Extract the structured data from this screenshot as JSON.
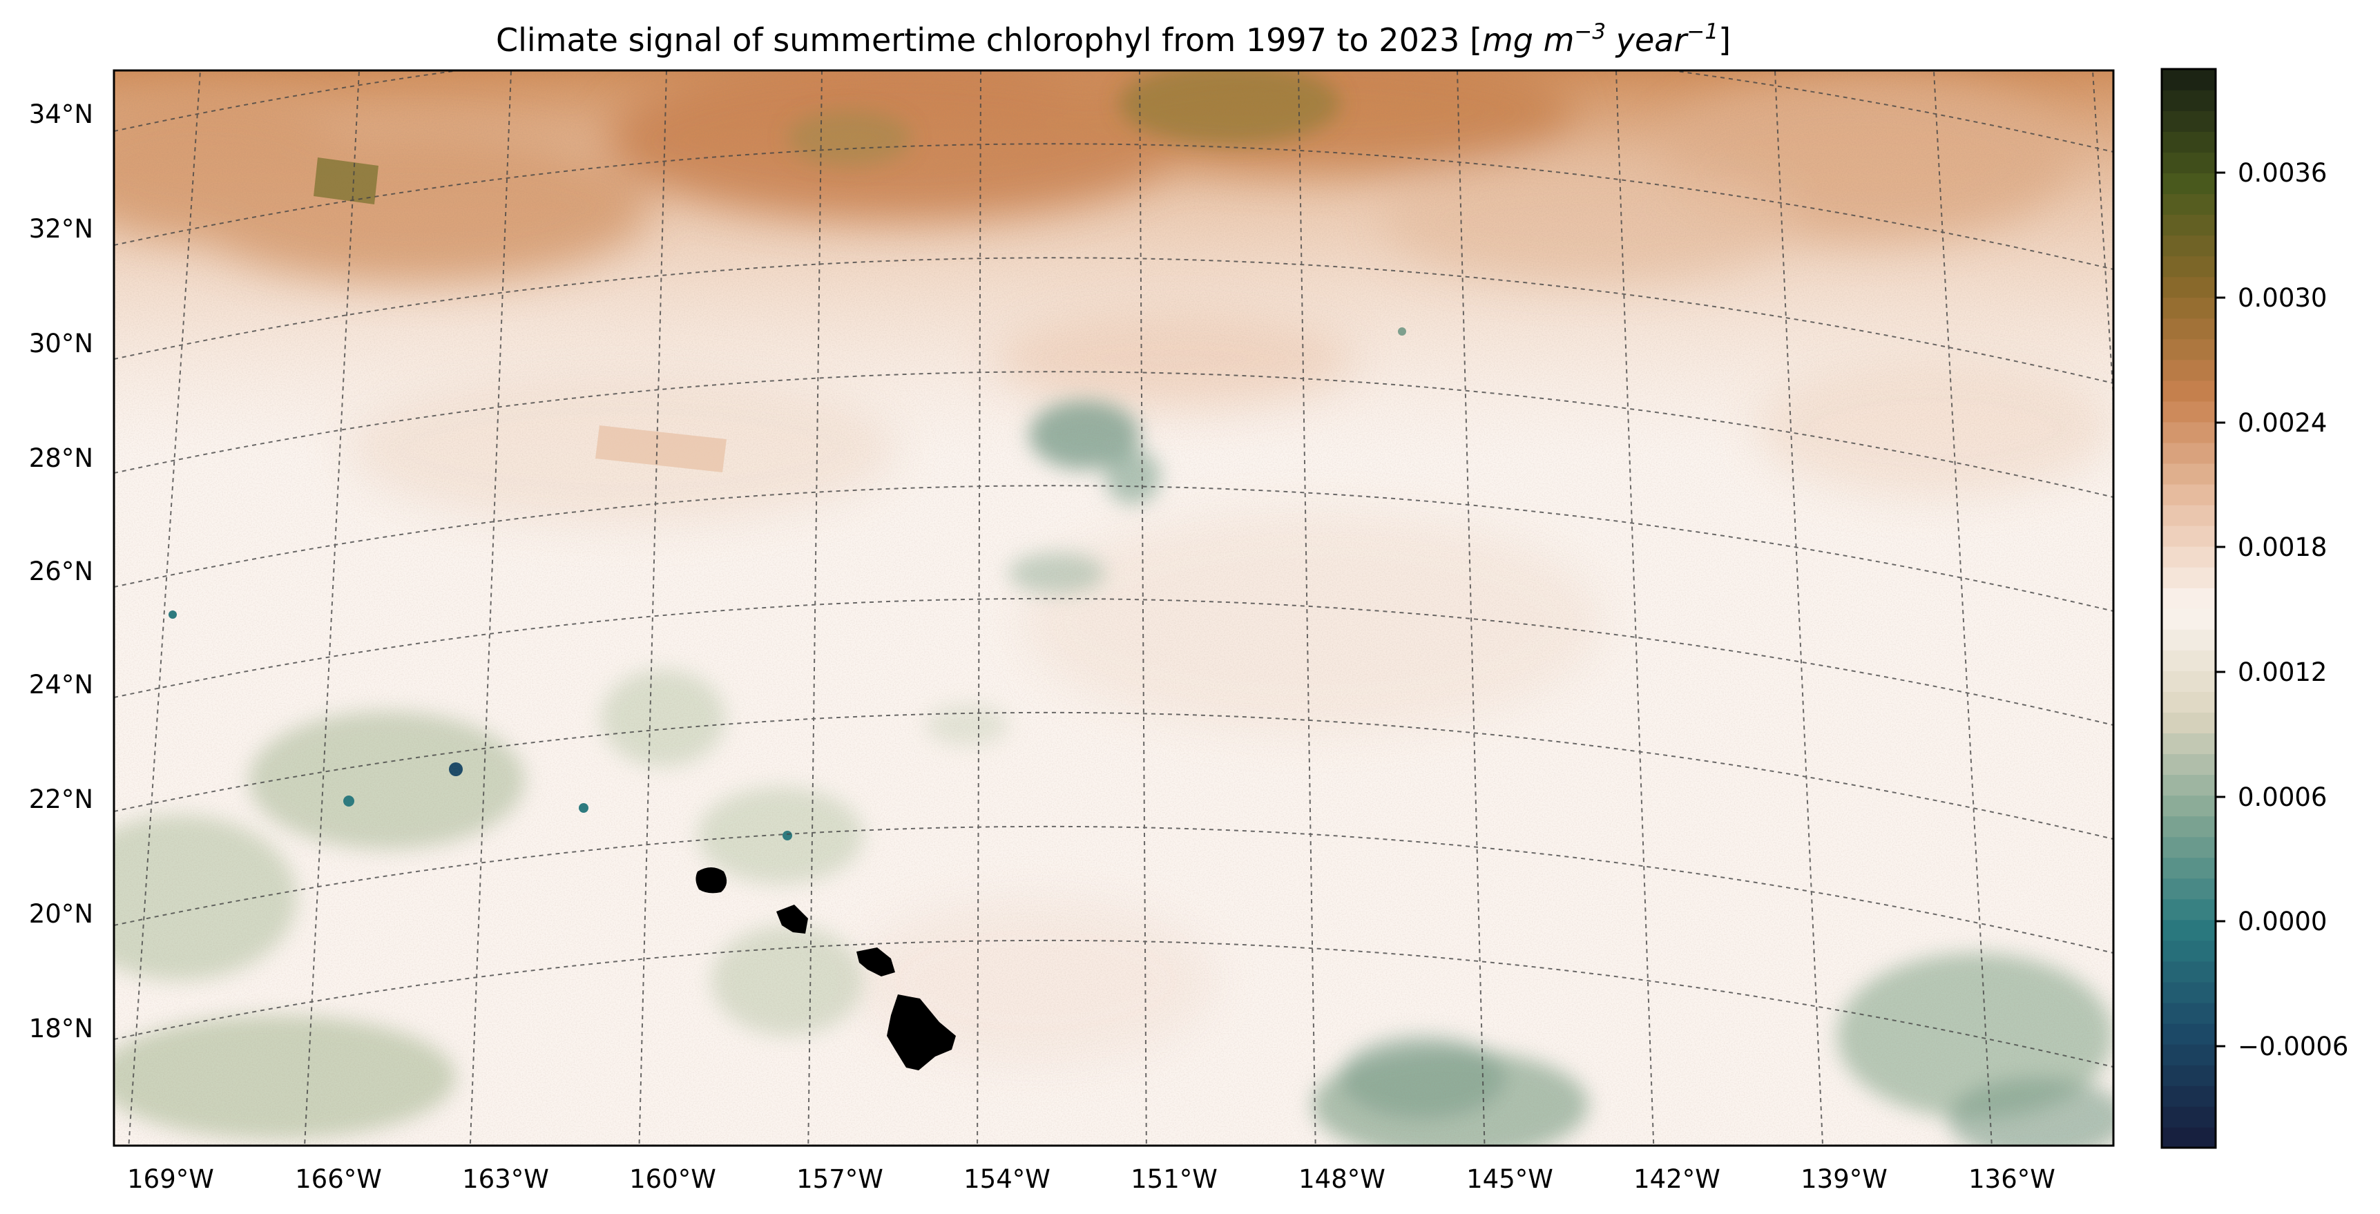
{
  "figure": {
    "title_text": "Climate signal of summertime chlorophyl from 1997 to 2023",
    "title_units_open": "[",
    "title_units_mg": "mg m",
    "title_units_exp1": "−3",
    "title_units_year": " year",
    "title_units_exp2": "−1",
    "title_units_close": "]"
  },
  "map": {
    "lat_labels": [
      "34°N",
      "32°N",
      "30°N",
      "28°N",
      "26°N",
      "24°N",
      "22°N",
      "20°N",
      "18°N"
    ],
    "lon_labels": [
      "169°W",
      "166°W",
      "163°W",
      "160°W",
      "157°W",
      "154°W",
      "151°W",
      "148°W",
      "145°W",
      "142°W",
      "139°W",
      "136°W"
    ],
    "gridlines": "dashed",
    "land_color": "#000000",
    "ocean_background": "#fbf4ef",
    "positive_color": "#c87a45",
    "negative_color": "#7ea08e"
  },
  "colorbar": {
    "tick_labels": [
      "0.0036",
      "0.0030",
      "0.0024",
      "0.0018",
      "0.0012",
      "0.0006",
      "0.0000",
      "−0.0006"
    ],
    "range": [
      -0.0009,
      0.004
    ],
    "colors": [
      "#17203f",
      "#1c4a68",
      "#2b7a7f",
      "#7fa592",
      "#dcd5bf",
      "#fbf4ef",
      "#e8c0a5",
      "#c9814f",
      "#8c6a2c",
      "#4a5a1d",
      "#1c2414"
    ]
  }
}
